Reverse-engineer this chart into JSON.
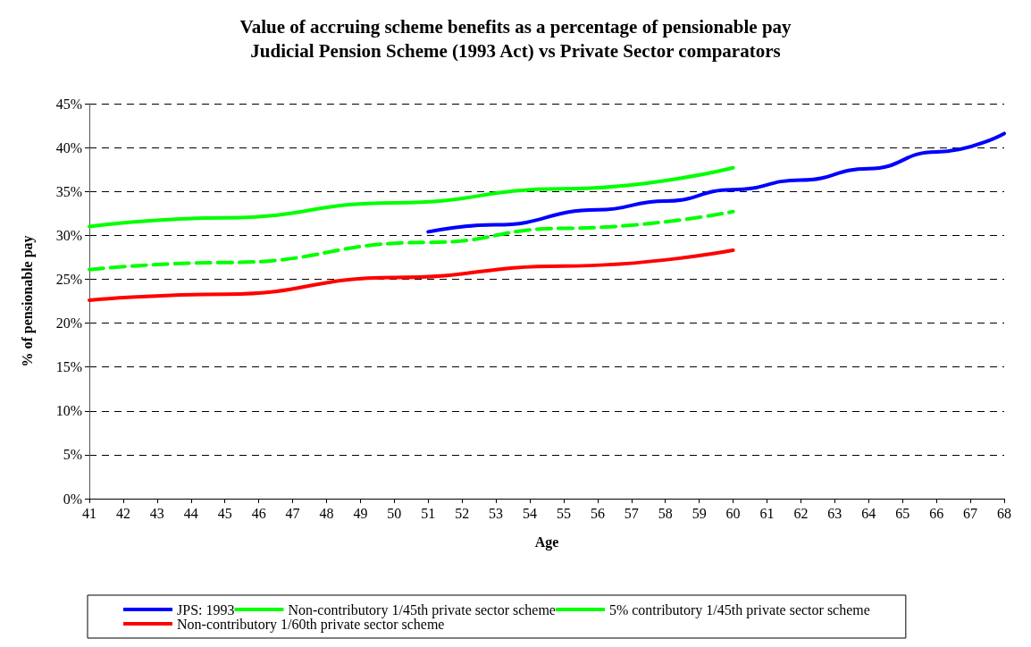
{
  "chart_data": {
    "type": "line",
    "title": "Value of accruing scheme benefits as a percentage of pensionable pay",
    "subtitle": "Judicial Pension Scheme (1993 Act) vs Private Sector comparators",
    "xlabel": "Age",
    "ylabel": "% of pensionable pay",
    "xlim": [
      41,
      68
    ],
    "xticks": [
      41,
      42,
      43,
      44,
      45,
      46,
      47,
      48,
      49,
      50,
      51,
      52,
      53,
      54,
      55,
      56,
      57,
      58,
      59,
      60,
      61,
      62,
      63,
      64,
      65,
      66,
      67,
      68
    ],
    "ylim": [
      0,
      45
    ],
    "yticks": [
      {
        "value": 0,
        "label": "0%"
      },
      {
        "value": 5,
        "label": "5%"
      },
      {
        "value": 10,
        "label": "10%"
      },
      {
        "value": 15,
        "label": "15%"
      },
      {
        "value": 20,
        "label": "20%"
      },
      {
        "value": 25,
        "label": "25%"
      },
      {
        "value": 30,
        "label": "30%"
      },
      {
        "value": 35,
        "label": "35%"
      },
      {
        "value": 40,
        "label": "40%"
      },
      {
        "value": 45,
        "label": "45%"
      }
    ],
    "grid": "y",
    "legend": "bottom",
    "marker": "none",
    "series": [
      {
        "name": "JPS: 1993",
        "color": "#0000ff",
        "line_style": "solid",
        "x": [
          51,
          53,
          56,
          58,
          60,
          62,
          64,
          66,
          68
        ],
        "values": [
          30.4,
          31.2,
          32.9,
          33.9,
          35.2,
          36.3,
          37.6,
          39.5,
          41.6
        ]
      },
      {
        "name": "Non-contributory 1/45th private sector scheme",
        "color": "#00ff00",
        "line_style": "solid",
        "x": [
          41,
          45,
          50,
          55,
          60
        ],
        "values": [
          31.0,
          32.0,
          33.7,
          35.3,
          37.7
        ]
      },
      {
        "name": "5% contributory 1/45th private sector scheme",
        "color": "#00ff00",
        "line_style": "dashed",
        "x": [
          41,
          45,
          51,
          55,
          60
        ],
        "values": [
          26.1,
          26.9,
          29.2,
          30.8,
          32.7
        ]
      },
      {
        "name": "Non-contributory 1/60th private sector scheme",
        "color": "#ff0000",
        "line_style": "solid",
        "x": [
          41,
          45,
          50,
          55,
          60
        ],
        "values": [
          22.6,
          23.3,
          25.2,
          26.5,
          28.3
        ]
      }
    ]
  }
}
